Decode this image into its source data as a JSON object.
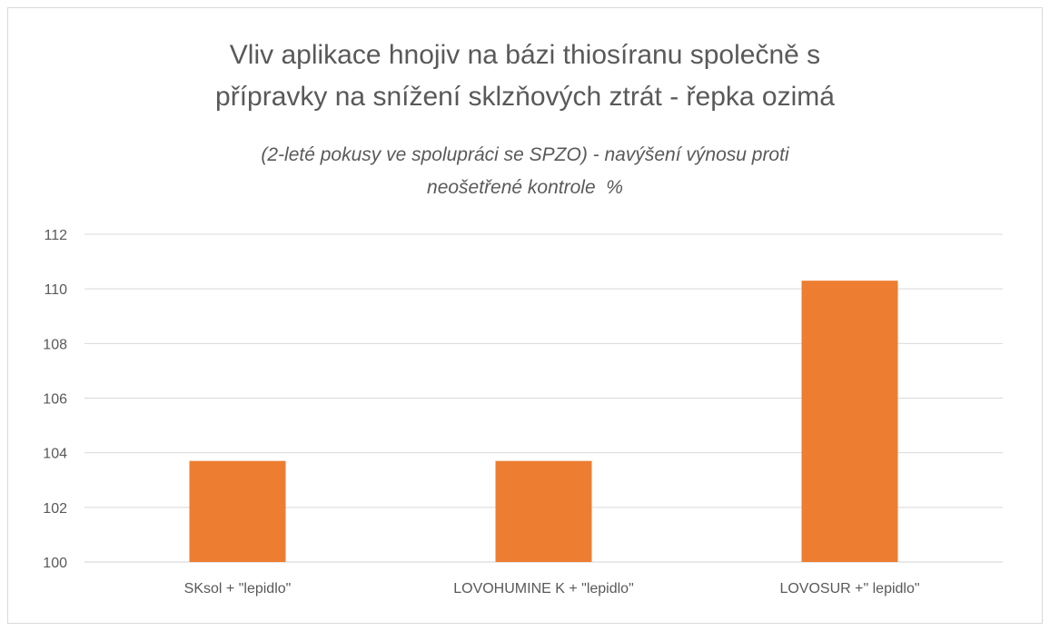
{
  "chart_data": {
    "type": "bar",
    "title_lines": [
      "Vliv aplikace hnojiv na bázi thiosíranu společně s",
      "přípravky na snížení sklzňových ztrát - řepka ozimá"
    ],
    "subtitle_lines": [
      "(2-leté pokusy ve spolupráci se SPZO) - navýšení výnosu proti",
      "neošetřené kontrole  %"
    ],
    "categories": [
      "SKsol + \"lepidlo\"",
      "LOVOHUMINE K + \"lepidlo\"",
      "LOVOSUR +\" lepidlo\""
    ],
    "values": [
      103.7,
      103.7,
      110.3
    ],
    "ylim": [
      100,
      112
    ],
    "yticks": [
      100,
      102,
      104,
      106,
      108,
      110,
      112
    ],
    "ytick_labels": [
      "100",
      "102",
      "104",
      "106",
      "108",
      "110",
      "112"
    ],
    "xlabel": "",
    "ylabel": "",
    "grid": true,
    "legend": "none",
    "bar_color": "#ED7D31",
    "grid_color": "#D9D9D9",
    "text_color": "#595959"
  }
}
